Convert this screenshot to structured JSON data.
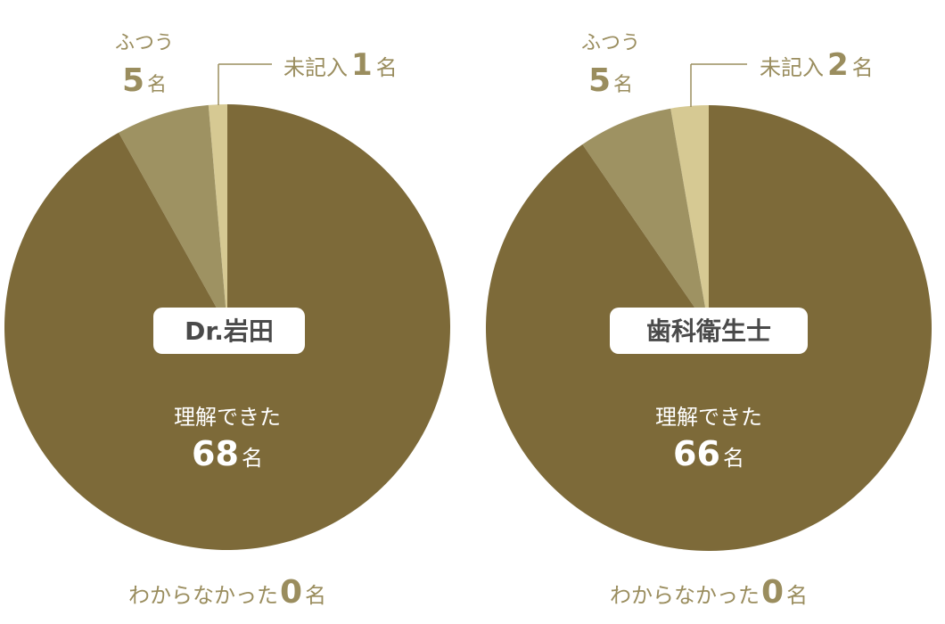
{
  "colors": {
    "understood": "#7d6a39",
    "normal": "#9e9262",
    "blank": "#d6c993",
    "not_understood": "#b3a877",
    "label": "#9a8d5e",
    "badge_bg": "#ffffff",
    "badge_text": "#4a4a4a"
  },
  "chart_data": [
    {
      "type": "pie",
      "title": "Dr.岩田",
      "slices": [
        {
          "label": "理解できた",
          "value": 68,
          "unit": "名",
          "color_key": "understood"
        },
        {
          "label": "わからなかった",
          "value": 0,
          "unit": "名",
          "color_key": "not_understood"
        },
        {
          "label": "ふつう",
          "value": 5,
          "unit": "名",
          "color_key": "normal"
        },
        {
          "label": "未記入",
          "value": 1,
          "unit": "名",
          "color_key": "blank"
        }
      ]
    },
    {
      "type": "pie",
      "title": "歯科衛生士",
      "slices": [
        {
          "label": "理解できた",
          "value": 66,
          "unit": "名",
          "color_key": "understood"
        },
        {
          "label": "わからなかった",
          "value": 0,
          "unit": "名",
          "color_key": "not_understood"
        },
        {
          "label": "ふつう",
          "value": 5,
          "unit": "名",
          "color_key": "normal"
        },
        {
          "label": "未記入",
          "value": 2,
          "unit": "名",
          "color_key": "blank"
        }
      ]
    }
  ]
}
